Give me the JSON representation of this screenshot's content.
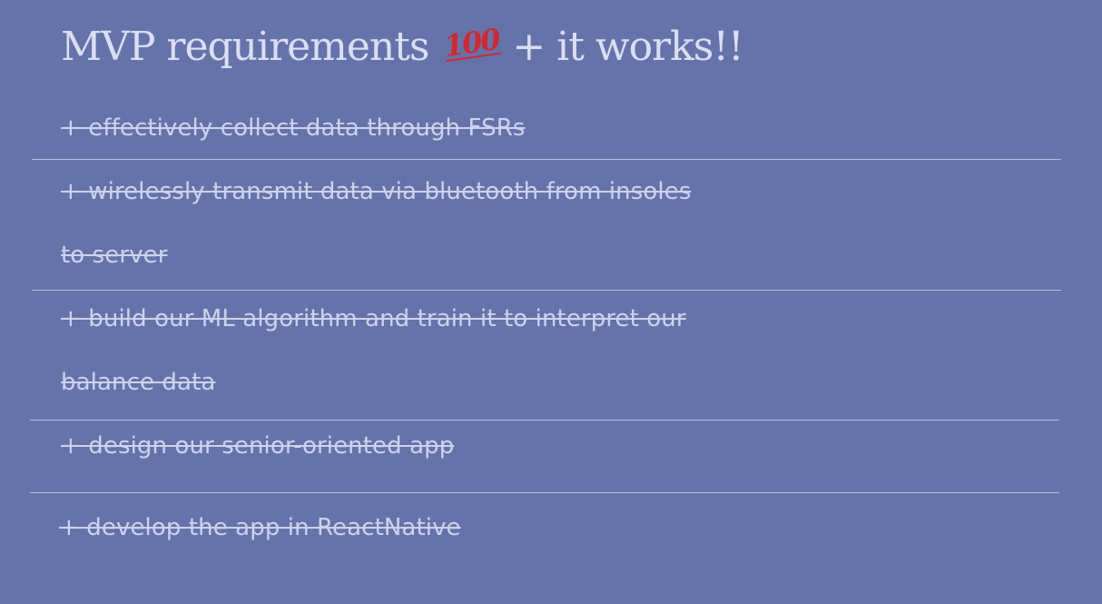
{
  "title": {
    "text": "MVP requirements",
    "emoji": "100",
    "suffix": "+ it works!!"
  },
  "items": [
    {
      "bullet": "+",
      "lines": [
        "effectively collect data through FSRs"
      ]
    },
    {
      "bullet": "+",
      "lines": [
        "wirelessly transmit data via bluetooth from insoles",
        "to server"
      ]
    },
    {
      "bullet": "+",
      "lines": [
        "build our ML algorithm and train it to interpret our",
        "balance data"
      ]
    },
    {
      "bullet": "+",
      "lines": [
        "design our senior-oriented app"
      ]
    },
    {
      "bullet": "+",
      "lines": [
        "develop the app in ReactNative"
      ]
    }
  ]
}
